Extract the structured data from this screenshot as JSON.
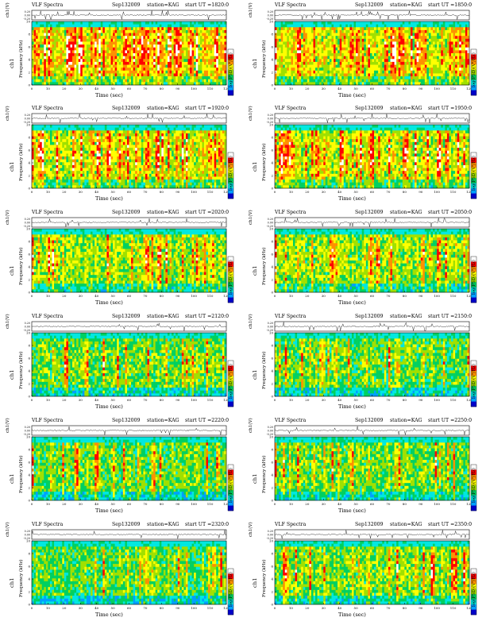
{
  "chart_data": {
    "type": "heatmap",
    "title": "VLF Spectra",
    "date": "Sep132009",
    "station": "station=KAG",
    "ut_label": "start  UT  =",
    "time_series_ylabel": "ch1(V)",
    "time_series_ticks": [
      "0.20",
      "0.00",
      "-0.20"
    ],
    "spectrogram_ylabel_channel": "ch1",
    "spectrogram_ylabel": "Frequency  (kHz)",
    "y_ticks": [
      "0",
      "2",
      "4",
      "6",
      "8",
      "10"
    ],
    "x_ticks": [
      "0",
      "10",
      "20",
      "30",
      "40",
      "50",
      "60",
      "70",
      "80",
      "90",
      "100",
      "110",
      "120"
    ],
    "xlabel": "Time  (sec)",
    "xlim": [
      0,
      120
    ],
    "ylim": [
      0,
      10
    ],
    "colorbar_label": "log(PSD)(V²/Hz)",
    "colors": [
      "#0000c8",
      "#00a0ff",
      "#00e8e0",
      "#00d060",
      "#a0e000",
      "#ffff00",
      "#ff9000",
      "#ff0000",
      "#ffffff"
    ],
    "panels": [
      {
        "start": "1820:0",
        "activity": 0.9
      },
      {
        "start": "1850:0",
        "activity": 0.88
      },
      {
        "start": "1920:0",
        "activity": 0.8
      },
      {
        "start": "1950:0",
        "activity": 0.75
      },
      {
        "start": "2020:0",
        "activity": 0.6
      },
      {
        "start": "2050:0",
        "activity": 0.55
      },
      {
        "start": "2120:0",
        "activity": 0.42
      },
      {
        "start": "2150:0",
        "activity": 0.35
      },
      {
        "start": "2220:0",
        "activity": 0.4
      },
      {
        "start": "2250:0",
        "activity": 0.45
      },
      {
        "start": "2320:0",
        "activity": 0.35
      },
      {
        "start": "2350:0",
        "activity": 0.5
      }
    ]
  }
}
